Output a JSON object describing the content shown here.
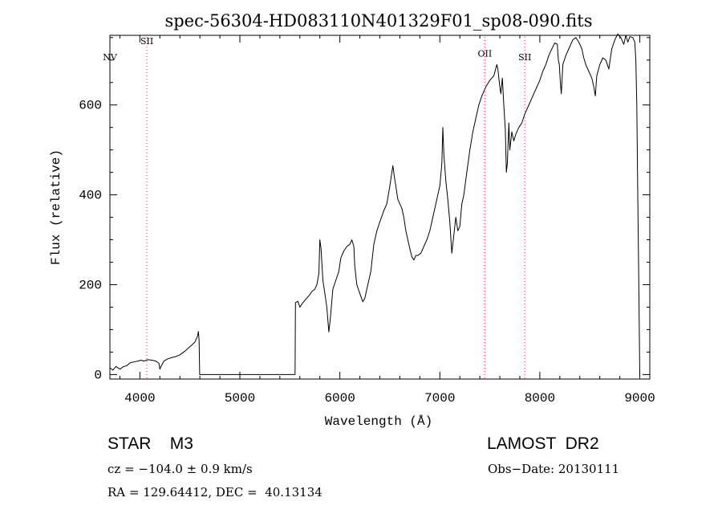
{
  "chart_data": {
    "type": "line",
    "title": "spec-56304-HD083110N401329F01_sp08-090.fits",
    "xlabel": "Wavelength (Å)",
    "ylabel": "Flux (relative)",
    "xlim": [
      3700,
      9100
    ],
    "ylim": [
      -10,
      755
    ],
    "x_ticks": [
      4000,
      5000,
      6000,
      7000,
      8000,
      9000
    ],
    "y_ticks": [
      0,
      200,
      400,
      600
    ],
    "grid": false,
    "legend": "none",
    "series": [
      {
        "color": "#000000",
        "points": [
          [
            3700,
            15
          ],
          [
            3730,
            10
          ],
          [
            3760,
            18
          ],
          [
            3800,
            12
          ],
          [
            3830,
            17
          ],
          [
            3870,
            20
          ],
          [
            3900,
            26
          ],
          [
            3940,
            28
          ],
          [
            3980,
            30
          ],
          [
            4010,
            32
          ],
          [
            4040,
            30
          ],
          [
            4080,
            33
          ],
          [
            4120,
            32
          ],
          [
            4160,
            30
          ],
          [
            4190,
            25
          ],
          [
            4200,
            12
          ],
          [
            4215,
            20
          ],
          [
            4240,
            30
          ],
          [
            4280,
            35
          ],
          [
            4320,
            38
          ],
          [
            4360,
            40
          ],
          [
            4400,
            44
          ],
          [
            4450,
            52
          ],
          [
            4490,
            60
          ],
          [
            4520,
            66
          ],
          [
            4550,
            72
          ],
          [
            4575,
            85
          ],
          [
            4585,
            96
          ],
          [
            4592,
            75
          ],
          [
            4598,
            0
          ],
          [
            5552,
            0
          ],
          [
            5556,
            160
          ],
          [
            5580,
            163
          ],
          [
            5600,
            150
          ],
          [
            5630,
            160
          ],
          [
            5660,
            168
          ],
          [
            5700,
            178
          ],
          [
            5720,
            185
          ],
          [
            5750,
            190
          ],
          [
            5770,
            200
          ],
          [
            5790,
            225
          ],
          [
            5800,
            300
          ],
          [
            5812,
            280
          ],
          [
            5830,
            210
          ],
          [
            5850,
            180
          ],
          [
            5870,
            150
          ],
          [
            5890,
            95
          ],
          [
            5905,
            125
          ],
          [
            5930,
            190
          ],
          [
            5960,
            210
          ],
          [
            5990,
            230
          ],
          [
            6010,
            260
          ],
          [
            6040,
            275
          ],
          [
            6070,
            285
          ],
          [
            6100,
            290
          ],
          [
            6120,
            300
          ],
          [
            6140,
            285
          ],
          [
            6150,
            240
          ],
          [
            6170,
            200
          ],
          [
            6200,
            180
          ],
          [
            6230,
            162
          ],
          [
            6250,
            170
          ],
          [
            6280,
            200
          ],
          [
            6310,
            230
          ],
          [
            6340,
            290
          ],
          [
            6370,
            320
          ],
          [
            6400,
            340
          ],
          [
            6440,
            365
          ],
          [
            6470,
            380
          ],
          [
            6500,
            420
          ],
          [
            6520,
            450
          ],
          [
            6530,
            465
          ],
          [
            6545,
            440
          ],
          [
            6560,
            420
          ],
          [
            6580,
            390
          ],
          [
            6600,
            380
          ],
          [
            6620,
            370
          ],
          [
            6640,
            350
          ],
          [
            6660,
            320
          ],
          [
            6680,
            300
          ],
          [
            6700,
            280
          ],
          [
            6720,
            262
          ],
          [
            6740,
            255
          ],
          [
            6760,
            265
          ],
          [
            6780,
            265
          ],
          [
            6810,
            270
          ],
          [
            6840,
            285
          ],
          [
            6870,
            300
          ],
          [
            6900,
            320
          ],
          [
            6940,
            360
          ],
          [
            6970,
            390
          ],
          [
            7000,
            420
          ],
          [
            7020,
            470
          ],
          [
            7030,
            550
          ],
          [
            7040,
            490
          ],
          [
            7060,
            430
          ],
          [
            7080,
            390
          ],
          [
            7100,
            340
          ],
          [
            7120,
            270
          ],
          [
            7140,
            310
          ],
          [
            7160,
            350
          ],
          [
            7180,
            320
          ],
          [
            7200,
            330
          ],
          [
            7220,
            380
          ],
          [
            7240,
            400
          ],
          [
            7270,
            450
          ],
          [
            7300,
            500
          ],
          [
            7330,
            540
          ],
          [
            7360,
            570
          ],
          [
            7390,
            600
          ],
          [
            7420,
            620
          ],
          [
            7460,
            640
          ],
          [
            7500,
            655
          ],
          [
            7540,
            665
          ],
          [
            7570,
            690
          ],
          [
            7580,
            680
          ],
          [
            7600,
            640
          ],
          [
            7610,
            625
          ],
          [
            7625,
            660
          ],
          [
            7640,
            600
          ],
          [
            7655,
            545
          ],
          [
            7665,
            450
          ],
          [
            7675,
            470
          ],
          [
            7690,
            560
          ],
          [
            7700,
            500
          ],
          [
            7720,
            540
          ],
          [
            7740,
            520
          ],
          [
            7760,
            535
          ],
          [
            7790,
            550
          ],
          [
            7820,
            560
          ],
          [
            7850,
            580
          ],
          [
            7880,
            595
          ],
          [
            7910,
            610
          ],
          [
            7940,
            625
          ],
          [
            7970,
            640
          ],
          [
            8000,
            655
          ],
          [
            8030,
            675
          ],
          [
            8060,
            690
          ],
          [
            8090,
            710
          ],
          [
            8120,
            725
          ],
          [
            8150,
            738
          ],
          [
            8175,
            735
          ],
          [
            8185,
            700
          ],
          [
            8195,
            690
          ],
          [
            8205,
            650
          ],
          [
            8215,
            625
          ],
          [
            8230,
            690
          ],
          [
            8260,
            710
          ],
          [
            8300,
            730
          ],
          [
            8330,
            745
          ],
          [
            8360,
            750
          ],
          [
            8390,
            740
          ],
          [
            8420,
            725
          ],
          [
            8440,
            705
          ],
          [
            8460,
            690
          ],
          [
            8480,
            680
          ],
          [
            8500,
            670
          ],
          [
            8520,
            660
          ],
          [
            8540,
            640
          ],
          [
            8555,
            620
          ],
          [
            8570,
            665
          ],
          [
            8600,
            690
          ],
          [
            8630,
            705
          ],
          [
            8660,
            700
          ],
          [
            8690,
            680
          ],
          [
            8720,
            725
          ],
          [
            8750,
            745
          ],
          [
            8780,
            758
          ],
          [
            8810,
            750
          ],
          [
            8840,
            735
          ],
          [
            8860,
            755
          ],
          [
            8880,
            740
          ],
          [
            8900,
            752
          ],
          [
            8930,
            750
          ],
          [
            8950,
            740
          ],
          [
            8960,
            700
          ],
          [
            8970,
            600
          ],
          [
            8980,
            400
          ],
          [
            8990,
            200
          ],
          [
            9000,
            0
          ]
        ]
      }
    ],
    "lines": [
      {
        "label": "NV",
        "x": 3700,
        "label_y": 700,
        "draw_line": false
      },
      {
        "label": "SII",
        "x": 4070,
        "label_y": 735,
        "draw_line": true
      },
      {
        "label": "OII",
        "x": 7450,
        "label_y": 708,
        "draw_line": true
      },
      {
        "label": "SII",
        "x": 7850,
        "label_y": 700,
        "draw_line": true
      }
    ],
    "line_color": "#d63a3a"
  },
  "info": {
    "class": "STAR    M3",
    "survey": "LAMOST  DR2",
    "cz": "cz = −104.0 ± 0.9 km/s",
    "obs_date": "Obs−Date: 20130111",
    "coords": "RA = 129.64412, DEC =  40.13134"
  }
}
